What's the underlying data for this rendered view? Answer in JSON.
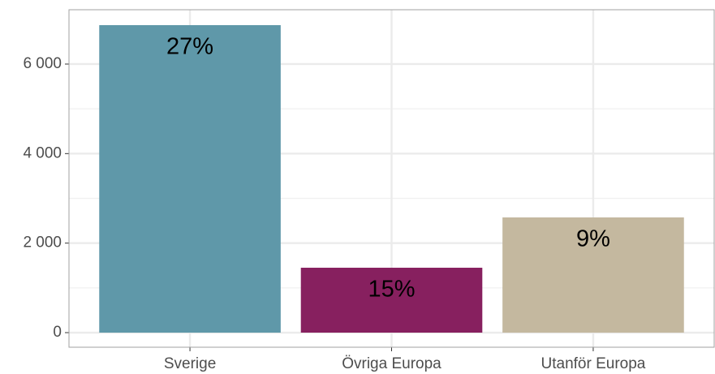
{
  "chart_data": {
    "type": "bar",
    "categories": [
      "Sverige",
      "Övriga Europa",
      "Utanför Europa"
    ],
    "values": [
      6870,
      1450,
      2574
    ],
    "bar_labels": [
      "27%",
      "15%",
      "9%"
    ],
    "colors": [
      "#5f98a9",
      "#87205f",
      "#c4b89f"
    ],
    "ylim": [
      -326,
      7214
    ],
    "yticks": [
      0,
      {
        "value": 2000,
        "label": "2 000"
      },
      {
        "value": 4000,
        "label": "4 000"
      },
      {
        "value": 6000,
        "label": "6 000"
      }
    ],
    "grid": true
  }
}
